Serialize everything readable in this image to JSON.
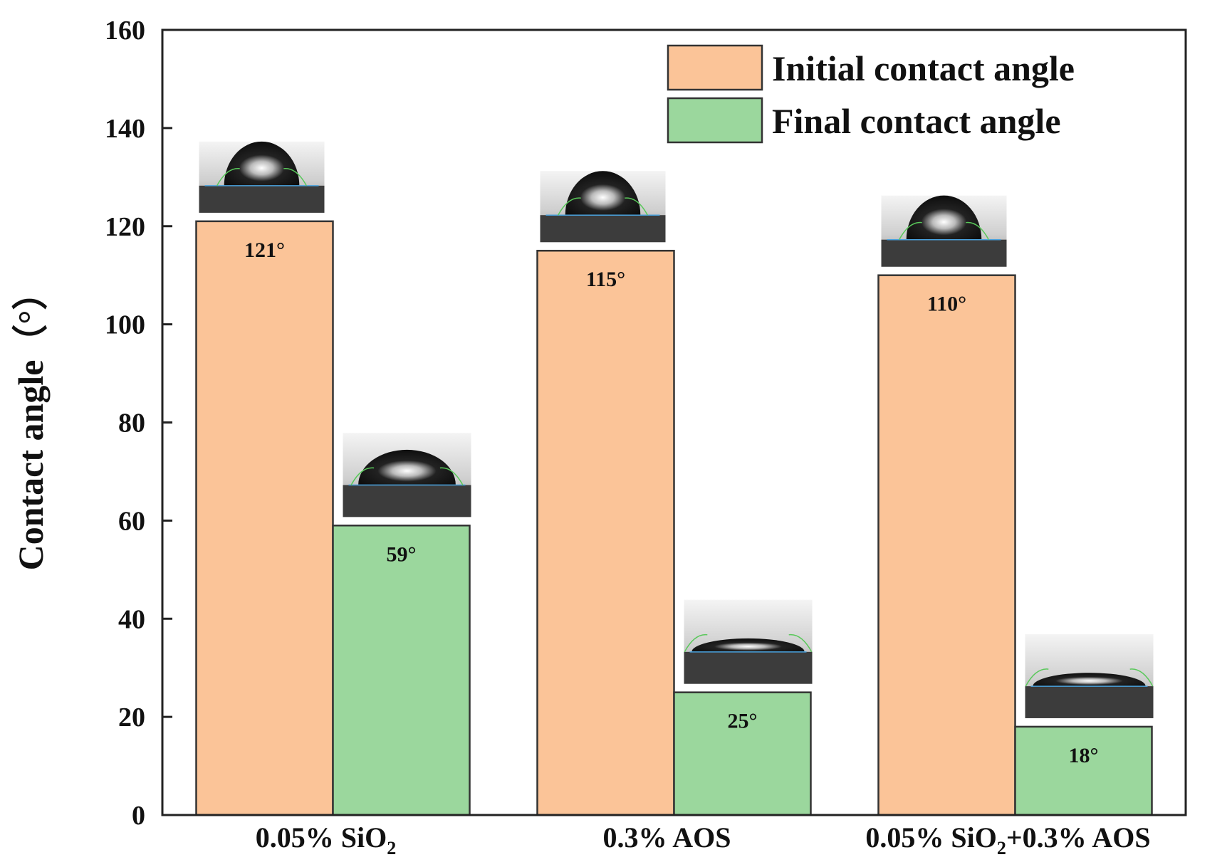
{
  "chart_data": {
    "type": "bar",
    "categories": [
      "0.05% SiO2",
      "0.3% AOS",
      "0.05% SiO2+0.3% AOS"
    ],
    "category_labels": [
      [
        {
          "t": "0.05% SiO",
          "sub": false
        },
        {
          "t": "2",
          "sub": true
        }
      ],
      [
        {
          "t": "0.3% AOS",
          "sub": false
        }
      ],
      [
        {
          "t": "0.05% SiO",
          "sub": false
        },
        {
          "t": "2",
          "sub": true
        },
        {
          "t": "+0.3% AOS",
          "sub": false
        }
      ]
    ],
    "series": [
      {
        "name": "Initial contact angle",
        "values": [
          121,
          115,
          110
        ],
        "color": "#fbc498"
      },
      {
        "name": "Final contact angle",
        "values": [
          59,
          25,
          18
        ],
        "color": "#9bd79d"
      }
    ],
    "data_labels": [
      [
        "121°",
        "115°",
        "110°"
      ],
      [
        "59°",
        "25°",
        "18°"
      ]
    ],
    "ylabel": "Contact angle（°）",
    "xlabel": "",
    "ylim": [
      0,
      160
    ],
    "yticks": [
      0,
      20,
      40,
      60,
      80,
      100,
      120,
      140,
      160
    ],
    "grid": false,
    "legend_position": "top-right",
    "droplet_images": true
  }
}
